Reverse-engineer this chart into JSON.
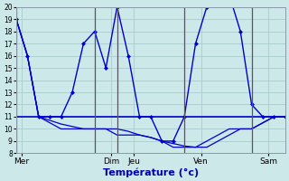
{
  "xlabel": "Température (°c)",
  "background_color": "#cce8e8",
  "grid_color": "#aacccc",
  "line_color": "#0000cc",
  "ylim": [
    8,
    20
  ],
  "yticks": [
    8,
    9,
    10,
    11,
    12,
    13,
    14,
    15,
    16,
    17,
    18,
    19,
    20
  ],
  "day_labels": [
    "Mer",
    "Dim",
    "Jeu",
    "Ven",
    "Sam"
  ],
  "day_tick_positions": [
    0.5,
    8.5,
    10.5,
    16.5,
    22.5
  ],
  "day_line_positions": [
    0,
    7,
    9,
    15,
    21
  ],
  "xlim": [
    0,
    24
  ],
  "n_points": 25,
  "series": {
    "line_top": [
      19,
      16,
      11,
      11,
      11,
      13,
      17,
      18,
      15,
      20,
      16,
      11,
      11,
      9,
      9,
      11,
      17,
      20,
      21,
      21,
      18,
      12,
      11,
      11,
      11
    ],
    "line_mid": [
      11,
      11,
      11,
      11,
      11,
      11,
      11,
      11,
      11,
      11,
      11,
      11,
      11,
      11,
      11,
      11,
      11,
      11,
      11,
      11,
      11,
      11,
      11,
      11,
      11
    ],
    "line_low1": [
      19,
      16,
      11,
      10.7,
      10.4,
      10.2,
      10,
      10,
      10,
      10,
      9.8,
      9.5,
      9.3,
      9,
      8.8,
      8.6,
      8.5,
      8.5,
      9,
      9.5,
      10,
      10,
      10.5,
      11,
      11
    ],
    "line_low2": [
      19,
      16,
      11,
      10.5,
      10,
      10,
      10,
      10,
      10,
      9.5,
      9.5,
      9.5,
      9.3,
      9,
      8.5,
      8.5,
      8.5,
      9,
      9.5,
      10,
      10,
      10,
      10.5,
      11,
      11
    ]
  }
}
